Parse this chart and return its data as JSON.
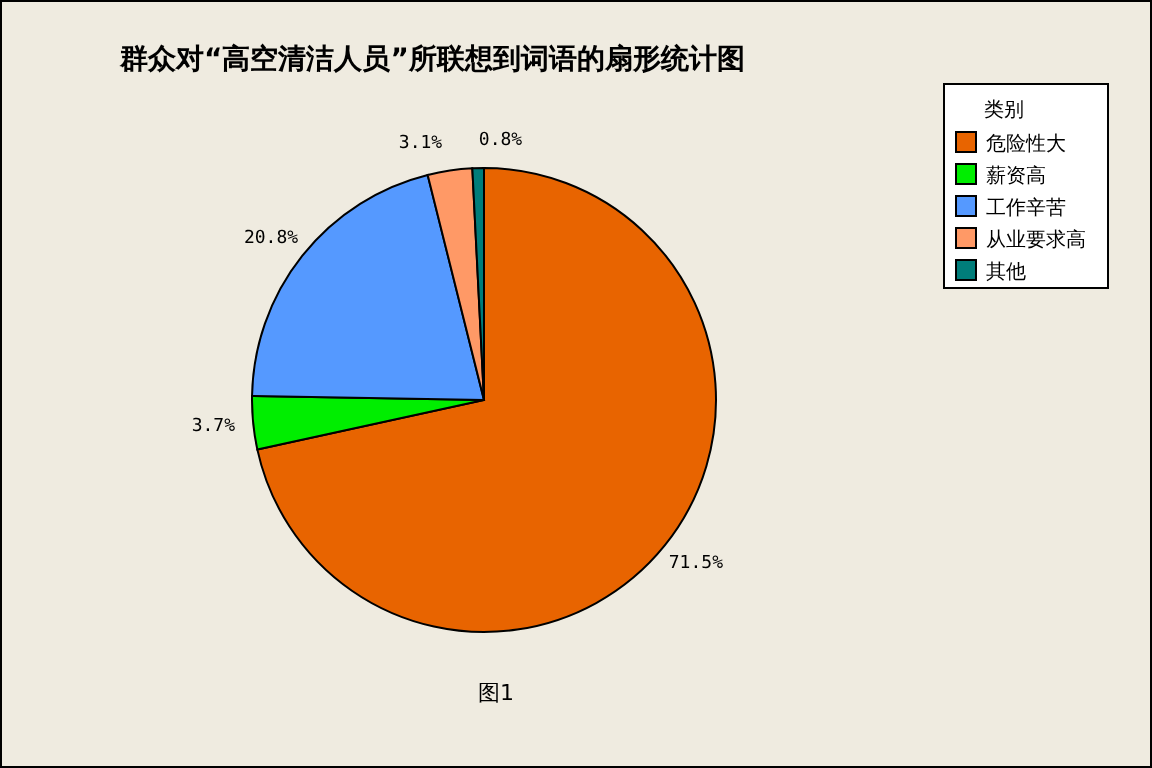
{
  "chart_data": {
    "type": "pie",
    "title": "群众对“高空清洁人员”所联想到词语的扇形统计图",
    "categories": [
      "危险性大",
      "薪资高",
      "工作辛苦",
      "从业要求高",
      "其他"
    ],
    "values": [
      71.5,
      3.7,
      20.8,
      3.1,
      0.8
    ],
    "value_labels": [
      "71.5%",
      "3.7%",
      "20.8%",
      "3.1%",
      "0.8%"
    ],
    "colors": [
      "#e86400",
      "#00ee00",
      "#5599ff",
      "#ff9966",
      "#007d7a"
    ],
    "legend_title": "类别",
    "legend": "top right",
    "annotations": [
      "图1"
    ]
  }
}
